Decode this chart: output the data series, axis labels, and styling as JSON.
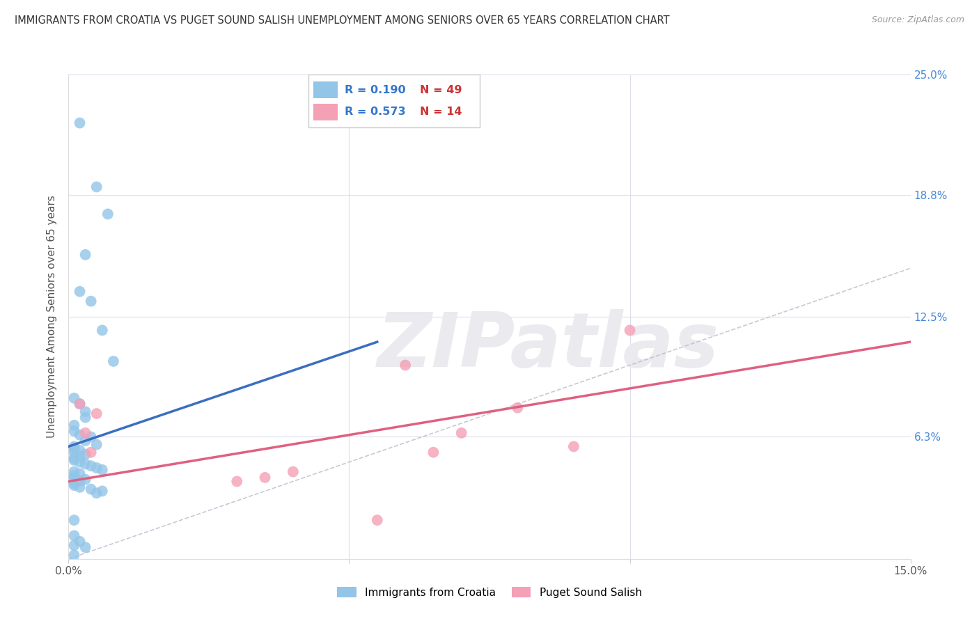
{
  "title": "IMMIGRANTS FROM CROATIA VS PUGET SOUND SALISH UNEMPLOYMENT AMONG SENIORS OVER 65 YEARS CORRELATION CHART",
  "source": "Source: ZipAtlas.com",
  "ylabel": "Unemployment Among Seniors over 65 years",
  "xlim": [
    0.0,
    0.15
  ],
  "ylim": [
    0.0,
    0.25
  ],
  "xticks": [
    0.0,
    0.05,
    0.1,
    0.15
  ],
  "xticklabels": [
    "0.0%",
    "",
    "",
    "15.0%"
  ],
  "yticks": [
    0.0,
    0.063,
    0.125,
    0.188,
    0.25
  ],
  "right_yticklabels": [
    "",
    "6.3%",
    "12.5%",
    "18.8%",
    "25.0%"
  ],
  "legend_blue_r": "R = 0.190",
  "legend_blue_n": "N = 49",
  "legend_pink_r": "R = 0.573",
  "legend_pink_n": "N = 14",
  "legend_label_blue": "Immigrants from Croatia",
  "legend_label_pink": "Puget Sound Salish",
  "blue_color": "#92C5E8",
  "pink_color": "#F4A0B5",
  "blue_line_color": "#3A6FBF",
  "pink_line_color": "#E06080",
  "ref_line_color": "#BBBBCC",
  "watermark": "ZIPatlas",
  "watermark_color": "#EAEAEF",
  "blue_scatter_x": [
    0.002,
    0.007,
    0.005,
    0.003,
    0.002,
    0.004,
    0.006,
    0.008,
    0.001,
    0.002,
    0.003,
    0.003,
    0.001,
    0.001,
    0.002,
    0.004,
    0.003,
    0.005,
    0.001,
    0.001,
    0.002,
    0.001,
    0.003,
    0.002,
    0.001,
    0.001,
    0.002,
    0.003,
    0.004,
    0.005,
    0.006,
    0.001,
    0.002,
    0.001,
    0.001,
    0.003,
    0.002,
    0.001,
    0.001,
    0.002,
    0.004,
    0.006,
    0.005,
    0.001,
    0.001,
    0.002,
    0.001,
    0.003,
    0.001
  ],
  "blue_scatter_y": [
    0.225,
    0.178,
    0.192,
    0.157,
    0.138,
    0.133,
    0.118,
    0.102,
    0.083,
    0.08,
    0.076,
    0.073,
    0.069,
    0.066,
    0.064,
    0.063,
    0.061,
    0.059,
    0.058,
    0.057,
    0.056,
    0.055,
    0.054,
    0.053,
    0.052,
    0.051,
    0.05,
    0.049,
    0.048,
    0.047,
    0.046,
    0.045,
    0.044,
    0.043,
    0.042,
    0.041,
    0.04,
    0.039,
    0.038,
    0.037,
    0.036,
    0.035,
    0.034,
    0.02,
    0.012,
    0.009,
    0.007,
    0.006,
    0.002
  ],
  "pink_scatter_x": [
    0.003,
    0.004,
    0.002,
    0.005,
    0.07,
    0.08,
    0.065,
    0.09,
    0.1,
    0.06,
    0.04,
    0.03,
    0.035,
    0.055
  ],
  "pink_scatter_y": [
    0.065,
    0.055,
    0.08,
    0.075,
    0.065,
    0.078,
    0.055,
    0.058,
    0.118,
    0.1,
    0.045,
    0.04,
    0.042,
    0.02
  ],
  "blue_trend_x": [
    0.0,
    0.055
  ],
  "blue_trend_y": [
    0.058,
    0.112
  ],
  "pink_trend_x": [
    0.0,
    0.15
  ],
  "pink_trend_y": [
    0.04,
    0.112
  ],
  "ref_line_x": [
    0.0,
    0.25
  ],
  "ref_line_y": [
    0.0,
    0.25
  ]
}
